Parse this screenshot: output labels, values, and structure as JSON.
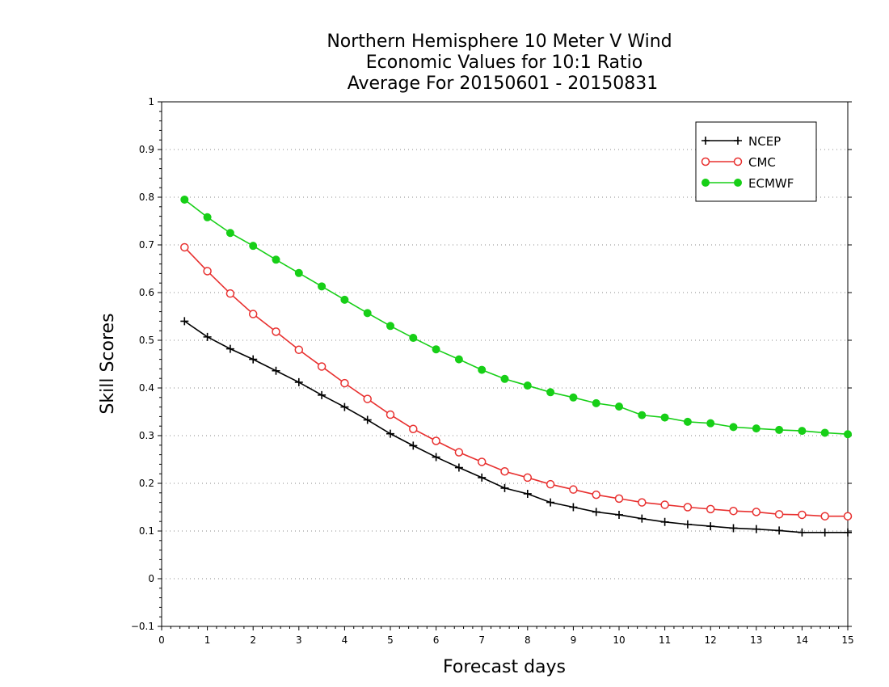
{
  "chart_data": {
    "type": "line",
    "title_lines": [
      "Northern Hemisphere 10 Meter V Wind",
      "Economic Values for 10:1 Ratio",
      "Average For 20150601 - 20150831"
    ],
    "xlabel": "Forecast days",
    "ylabel": "Skill Scores",
    "xlim": [
      0,
      15
    ],
    "ylim": [
      -0.1,
      1
    ],
    "xticks": [
      0,
      1,
      2,
      3,
      4,
      5,
      6,
      7,
      8,
      9,
      10,
      11,
      12,
      13,
      14,
      15
    ],
    "yticks": [
      -0.1,
      0,
      0.1,
      0.2,
      0.3,
      0.4,
      0.5,
      0.6,
      0.7,
      0.8,
      0.9,
      1
    ],
    "xtick_labels": [
      "0",
      "1",
      "2",
      "3",
      "4",
      "5",
      "6",
      "7",
      "8",
      "9",
      "10",
      "11",
      "12",
      "13",
      "14",
      "15"
    ],
    "ytick_labels": [
      "−0.1",
      "0",
      "0.1",
      "0.2",
      "0.3",
      "0.4",
      "0.5",
      "0.6",
      "0.7",
      "0.8",
      "0.9",
      "1"
    ],
    "grid": "horizontal dotted",
    "legend_position": "top-right",
    "x": [
      0.5,
      1,
      1.5,
      2,
      2.5,
      3,
      3.5,
      4,
      4.5,
      5,
      5.5,
      6,
      6.5,
      7,
      7.5,
      8,
      8.5,
      9,
      9.5,
      10,
      10.5,
      11,
      11.5,
      12,
      12.5,
      13,
      13.5,
      14,
      14.5,
      15
    ],
    "series": [
      {
        "name": "NCEP",
        "color": "#000000",
        "marker": "plus",
        "values": [
          0.54,
          0.507,
          0.482,
          0.46,
          0.436,
          0.412,
          0.385,
          0.36,
          0.333,
          0.304,
          0.279,
          0.255,
          0.233,
          0.212,
          0.19,
          0.178,
          0.16,
          0.15,
          0.14,
          0.134,
          0.126,
          0.119,
          0.114,
          0.11,
          0.106,
          0.104,
          0.101,
          0.097,
          0.097,
          0.097
        ]
      },
      {
        "name": "CMC",
        "color": "#e8302f",
        "marker": "open-circle",
        "values": [
          0.695,
          0.645,
          0.598,
          0.555,
          0.518,
          0.48,
          0.445,
          0.41,
          0.377,
          0.344,
          0.314,
          0.289,
          0.265,
          0.245,
          0.225,
          0.212,
          0.198,
          0.187,
          0.176,
          0.168,
          0.16,
          0.155,
          0.15,
          0.146,
          0.142,
          0.14,
          0.135,
          0.134,
          0.131,
          0.131
        ]
      },
      {
        "name": "ECMWF",
        "color": "#17cf17",
        "marker": "filled-circle",
        "values": [
          0.795,
          0.758,
          0.725,
          0.698,
          0.669,
          0.641,
          0.613,
          0.585,
          0.557,
          0.53,
          0.505,
          0.481,
          0.46,
          0.438,
          0.419,
          0.405,
          0.391,
          0.38,
          0.368,
          0.361,
          0.343,
          0.338,
          0.329,
          0.326,
          0.318,
          0.315,
          0.312,
          0.31,
          0.306,
          0.303
        ]
      }
    ]
  }
}
